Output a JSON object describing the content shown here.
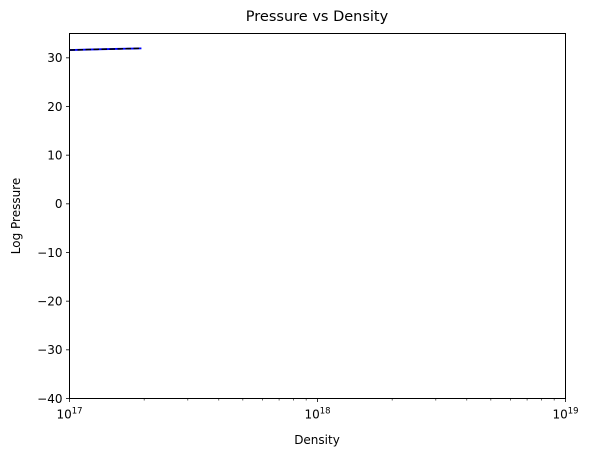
{
  "chart_data": {
    "type": "line",
    "title": "Pressure vs Density",
    "xlabel": "Density",
    "ylabel": "Log Pressure",
    "xscale": "log",
    "xlim": [
      1e+17,
      1e+19
    ],
    "ylim": [
      -40,
      35
    ],
    "grid": false,
    "x_ticks": [
      {
        "base": "10",
        "exp": "17",
        "value": 1e+17
      },
      {
        "base": "10",
        "exp": "18",
        "value": 1e+18
      },
      {
        "base": "10",
        "exp": "19",
        "value": 1e+19
      }
    ],
    "y_ticks": [
      "30",
      "20",
      "10",
      "0",
      "−10",
      "−20",
      "−30",
      "−40"
    ],
    "y_tick_values": [
      30,
      20,
      10,
      0,
      -10,
      -20,
      -30,
      -40
    ],
    "series": [
      {
        "style": "solid",
        "color": "#0000ff",
        "x": [
          1e+17,
          1.3e+17,
          1.6e+17,
          1.95e+17
        ],
        "y": [
          31.6,
          31.75,
          31.85,
          31.95
        ]
      },
      {
        "style": "dashed",
        "color": "#000000",
        "x": [
          1e+17,
          1.3e+17,
          1.6e+17,
          1.95e+17
        ],
        "y": [
          31.6,
          31.75,
          31.85,
          31.95
        ]
      }
    ]
  }
}
